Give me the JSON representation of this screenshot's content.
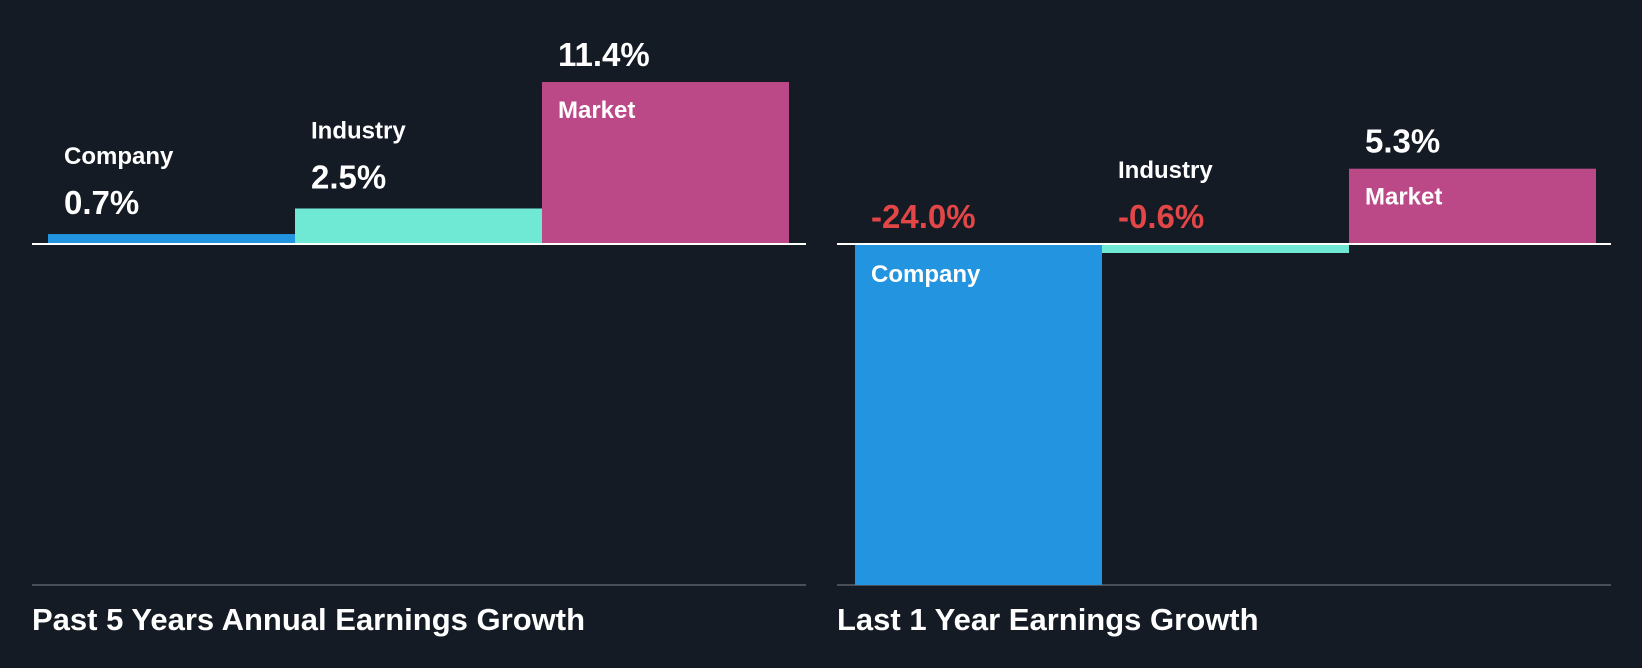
{
  "chart_data": [
    {
      "type": "bar",
      "title": "Past 5 Years Annual Earnings Growth",
      "categories": [
        "Company",
        "Industry",
        "Market"
      ],
      "values": [
        0.7,
        2.5,
        11.4
      ],
      "value_labels": [
        "0.7%",
        "2.5%",
        "11.4%"
      ],
      "ylim": [
        -24.0,
        11.4
      ],
      "grid": false,
      "legend": "none"
    },
    {
      "type": "bar",
      "title": "Last 1 Year Earnings Growth",
      "categories": [
        "Company",
        "Industry",
        "Market"
      ],
      "values": [
        -24.0,
        -0.6,
        5.3
      ],
      "value_labels": [
        "-24.0%",
        "-0.6%",
        "5.3%"
      ],
      "ylim": [
        -24.0,
        11.4
      ],
      "grid": false,
      "legend": "none"
    }
  ],
  "colors": {
    "background": "#151b24",
    "company": "#2394e0",
    "industry": "#6fe8d4",
    "market": "#bb4987",
    "text": "#ffffff",
    "negative_text": "#e24646",
    "zero_line": "#ffffff",
    "baseline": "#4a4f57"
  }
}
